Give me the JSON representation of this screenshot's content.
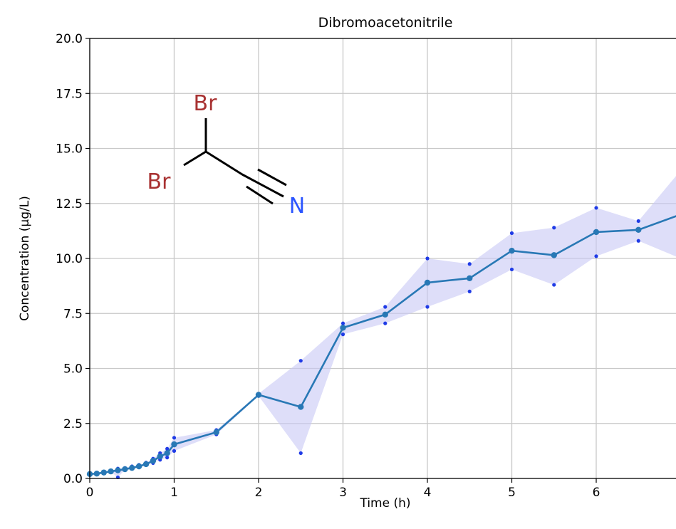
{
  "chart_data": {
    "type": "line",
    "title": "Dibromoacetonitrile",
    "xlabel": "Time (h)",
    "ylabel": "Concentration (µg/L)",
    "xlim": [
      0,
      7
    ],
    "ylim": [
      0,
      20
    ],
    "grid": true,
    "x_ticks": [
      "0",
      "1",
      "2",
      "3",
      "4",
      "5",
      "6"
    ],
    "y_ticks": [
      "0.0",
      "2.5",
      "5.0",
      "7.5",
      "10.0",
      "12.5",
      "15.0",
      "17.5",
      "20.0"
    ],
    "series": [
      {
        "color": "#2878b5",
        "x": [
          0,
          0.083,
          0.167,
          0.25,
          0.333,
          0.417,
          0.5,
          0.583,
          0.667,
          0.75,
          0.833,
          0.917,
          1,
          1.5,
          2,
          2.5,
          3,
          3.5,
          4,
          4.5,
          5,
          5.5,
          6,
          6.5,
          7
        ],
        "values": [
          0.2,
          0.22,
          0.27,
          0.32,
          0.37,
          0.42,
          0.48,
          0.55,
          0.65,
          0.8,
          1.0,
          1.15,
          1.55,
          2.1,
          3.8,
          3.25,
          6.85,
          7.45,
          8.9,
          9.1,
          10.35,
          10.15,
          11.2,
          11.3,
          12.0
        ],
        "lower": [
          0.2,
          0.22,
          0.27,
          0.3,
          0.05,
          0.4,
          0.45,
          0.5,
          0.6,
          0.7,
          0.85,
          0.95,
          1.25,
          2.0,
          3.75,
          1.15,
          6.55,
          7.05,
          7.8,
          8.5,
          9.5,
          8.8,
          10.1,
          10.8,
          10.0
        ],
        "upper": [
          0.22,
          0.25,
          0.3,
          0.35,
          0.45,
          0.48,
          0.55,
          0.62,
          0.72,
          0.9,
          1.15,
          1.35,
          1.85,
          2.2,
          3.85,
          5.35,
          7.05,
          7.8,
          10.0,
          9.75,
          11.15,
          11.4,
          12.3,
          11.7,
          14.0
        ]
      }
    ],
    "band_color": "#c8c8f5",
    "replicate_color": "#1f3be6",
    "molecule": {
      "atoms": [
        "Br",
        "Br",
        "N"
      ],
      "br_color": "#a83232",
      "n_color": "#2b55ff"
    }
  }
}
